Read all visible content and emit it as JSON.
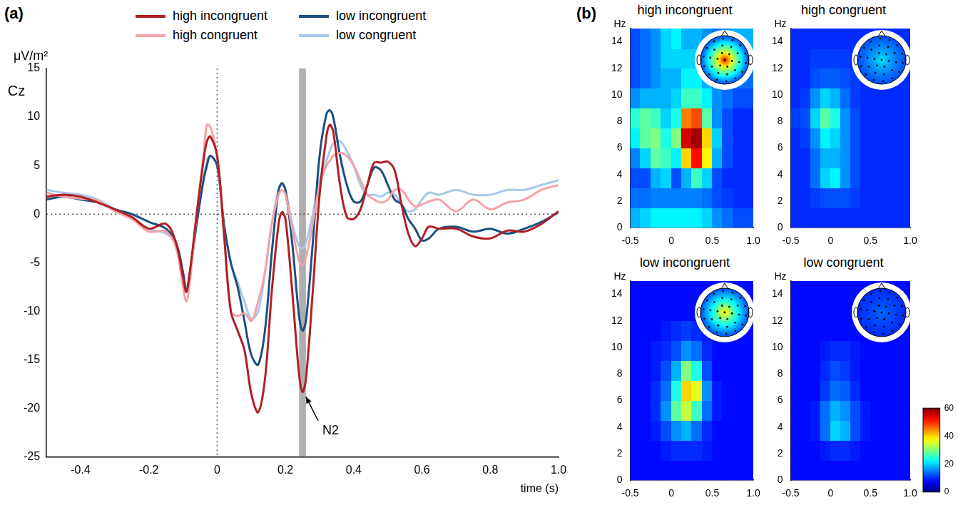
{
  "chart_data": [
    {
      "type": "line",
      "panel": "(a)",
      "y_label": "μV/m²",
      "x_label": "time (s)",
      "xlim": [
        -0.5,
        1.0
      ],
      "xticks": [
        -0.4,
        -0.2,
        0,
        0.2,
        0.4,
        0.6,
        0.8,
        {
          "value": 1.0,
          "label": "1.0"
        }
      ],
      "ylim": [
        -25,
        15
      ],
      "yticks": [
        -25,
        -20,
        -15,
        -10,
        -5,
        0,
        5,
        10,
        15
      ],
      "grid": false,
      "legend": "top",
      "x": [
        -0.5,
        -0.45,
        -0.4,
        -0.35,
        -0.3,
        -0.25,
        -0.2,
        -0.15,
        -0.12,
        -0.1,
        -0.09,
        -0.08,
        -0.06,
        -0.04,
        -0.03,
        -0.02,
        0,
        0.02,
        0.04,
        0.06,
        0.08,
        0.1,
        0.12,
        0.14,
        0.16,
        0.18,
        0.19,
        0.2,
        0.22,
        0.24,
        0.25,
        0.26,
        0.28,
        0.3,
        0.32,
        0.33,
        0.34,
        0.36,
        0.38,
        0.4,
        0.42,
        0.44,
        0.46,
        0.48,
        0.5,
        0.52,
        0.54,
        0.56,
        0.58,
        0.6,
        0.62,
        0.65,
        0.7,
        0.75,
        0.8,
        0.85,
        0.9,
        0.95,
        1.0
      ],
      "series": [
        {
          "name": "high incongruent",
          "color": "#b11f24",
          "values": [
            1.8,
            2,
            1.8,
            1.2,
            0.5,
            -0.3,
            -1.5,
            -1.0,
            -3,
            -6.5,
            -8,
            -6,
            0,
            5.5,
            7.5,
            8,
            6,
            -2,
            -10,
            -12,
            -14,
            -18.5,
            -20.4,
            -17,
            -8,
            -1,
            0.2,
            -0.5,
            -8,
            -16.5,
            -18.3,
            -17,
            -8,
            2,
            8,
            9.2,
            8.5,
            3,
            -0.3,
            -0.5,
            0.5,
            3,
            5.3,
            5.3,
            5.4,
            4.5,
            1,
            -2,
            -3.3,
            -2.5,
            -1.3,
            -1.5,
            -1.5,
            -2.3,
            -2.5,
            -1.7,
            -1.8,
            -1,
            0.3
          ]
        },
        {
          "name": "high congruent",
          "color": "#f4a3a8",
          "values": [
            2.2,
            1.8,
            1.6,
            1.4,
            0.3,
            -0.5,
            -1.8,
            -1.8,
            -3.5,
            -7.5,
            -9,
            -7,
            0,
            6,
            9.2,
            9,
            6,
            -2,
            -10,
            -10.5,
            -10.2,
            -11,
            -9,
            -6,
            -1,
            2,
            2.5,
            2,
            -1.5,
            -4.8,
            -5.3,
            -4.5,
            -1,
            3,
            5,
            5.5,
            6,
            6.3,
            6,
            5,
            3.5,
            2,
            1.5,
            1.2,
            1.5,
            2.5,
            2.5,
            1.5,
            0.8,
            1,
            1.3,
            1.5,
            0.3,
            1.5,
            0.5,
            1.2,
            1.5,
            2.5,
            3
          ]
        },
        {
          "name": "low incongruent",
          "color": "#1c4f80",
          "values": [
            1.5,
            1.8,
            1.5,
            1.2,
            0.5,
            0,
            -0.8,
            -1.5,
            -3,
            -6,
            -8,
            -6,
            -1,
            3.5,
            5,
            6,
            5,
            -1,
            -5,
            -7.5,
            -11,
            -14.5,
            -15.5,
            -12,
            -4,
            2.5,
            3.2,
            2.5,
            -3,
            -10.5,
            -12,
            -11,
            -3,
            6,
            10.3,
            10.7,
            10,
            6,
            3,
            1.3,
            1.3,
            3,
            4.8,
            4.5,
            3,
            1.5,
            1,
            -0.5,
            -1.5,
            -2.7,
            -2.5,
            -1.5,
            -1.3,
            -1.8,
            -1.5,
            -2,
            -1.5,
            -0.8,
            0.2
          ]
        },
        {
          "name": "low congruent",
          "color": "#a6c8ec",
          "values": [
            2.5,
            2.2,
            2,
            1.5,
            0.5,
            -0.3,
            -1.5,
            -2,
            -3,
            -6,
            -7.5,
            -6,
            -1,
            3.5,
            5.5,
            6,
            5,
            -1,
            -5,
            -7,
            -9,
            -10.8,
            -10,
            -6,
            -1,
            2.5,
            3,
            2.5,
            -1,
            -3.3,
            -3.5,
            -3,
            0,
            3.5,
            5.5,
            6.5,
            7.3,
            7.5,
            6.5,
            5,
            3,
            2,
            2,
            1.8,
            2.2,
            2,
            1,
            0.3,
            0.5,
            1.5,
            2.2,
            2,
            2.5,
            2,
            2,
            2.5,
            2.5,
            3,
            3.5
          ]
        }
      ],
      "annotations": [
        {
          "type": "band",
          "x": [
            0.24,
            0.26
          ]
        },
        {
          "type": "vline",
          "x": 0
        },
        {
          "type": "hline",
          "y": 0
        },
        {
          "type": "label",
          "text": "Cz"
        },
        {
          "type": "arrow",
          "text": "N2",
          "x": 0.3,
          "y": -22,
          "to": [
            0.26,
            -18.8
          ]
        }
      ]
    },
    {
      "type": "heatmap",
      "panel": "(b)",
      "title": "high incongruent",
      "y_label": "Hz",
      "xlim": [
        -0.5,
        1.0
      ],
      "xticks": [
        -0.5,
        0,
        0.5,
        {
          "value": 1.0,
          "label": "1.0"
        }
      ],
      "ylim": [
        0,
        15
      ],
      "yticks": [
        0,
        2,
        4,
        6,
        8,
        10,
        12,
        14
      ],
      "x_edges": [
        -0.5,
        -0.375,
        -0.25,
        -0.125,
        0,
        0.125,
        0.25,
        0.375,
        0.5,
        0.625,
        0.75,
        0.875,
        1.0
      ],
      "y_edges": [
        0,
        1.5,
        3,
        4.5,
        6,
        7.5,
        9,
        10.5,
        12,
        13.5,
        15
      ],
      "cells": [
        [
          18,
          20,
          22,
          22,
          22,
          22,
          22,
          20,
          16,
          14,
          12,
          12
        ],
        [
          14,
          14,
          15,
          15,
          15,
          15,
          15,
          14,
          12,
          11,
          10,
          10
        ],
        [
          12,
          12,
          18,
          20,
          12,
          18,
          26,
          20,
          12,
          10,
          10,
          10
        ],
        [
          15,
          20,
          28,
          26,
          22,
          40,
          52,
          38,
          18,
          12,
          10,
          10
        ],
        [
          22,
          28,
          30,
          24,
          30,
          55,
          58,
          40,
          20,
          12,
          10,
          10
        ],
        [
          25,
          28,
          26,
          20,
          24,
          45,
          48,
          28,
          16,
          12,
          10,
          10
        ],
        [
          16,
          18,
          18,
          18,
          20,
          26,
          26,
          22,
          16,
          14,
          12,
          12
        ],
        [
          12,
          14,
          16,
          18,
          18,
          22,
          22,
          18,
          16,
          14,
          14,
          14
        ],
        [
          12,
          14,
          16,
          20,
          20,
          20,
          20,
          16,
          14,
          16,
          18,
          18
        ],
        [
          12,
          14,
          16,
          20,
          22,
          18,
          18,
          16,
          14,
          16,
          18,
          18
        ]
      ],
      "topography": {
        "center": 55,
        "edge": 12
      }
    },
    {
      "type": "heatmap",
      "title": "high congruent",
      "y_label": "Hz",
      "xlim": [
        -0.5,
        1.0
      ],
      "xticks": [
        -0.5,
        0,
        0.5,
        {
          "value": 1.0,
          "label": "1.0"
        }
      ],
      "ylim": [
        0,
        15
      ],
      "yticks": [
        0,
        2,
        4,
        6,
        8,
        10,
        12,
        14
      ],
      "x_edges": [
        -0.5,
        -0.375,
        -0.25,
        -0.125,
        0,
        0.125,
        0.25,
        0.375,
        0.5,
        0.625,
        0.75,
        0.875,
        1.0
      ],
      "y_edges": [
        0,
        1.5,
        3,
        4.5,
        6,
        7.5,
        9,
        10.5,
        12,
        13.5,
        15
      ],
      "cells": [
        [
          10,
          10,
          10,
          10,
          10,
          10,
          10,
          10,
          10,
          10,
          10,
          10
        ],
        [
          10,
          10,
          11,
          12,
          12,
          12,
          11,
          10,
          10,
          10,
          10,
          10
        ],
        [
          10,
          10,
          14,
          20,
          22,
          16,
          12,
          10,
          10,
          10,
          10,
          10
        ],
        [
          10,
          10,
          14,
          18,
          18,
          16,
          12,
          10,
          10,
          10,
          10,
          10
        ],
        [
          10,
          11,
          16,
          22,
          20,
          16,
          12,
          10,
          10,
          10,
          10,
          10
        ],
        [
          11,
          12,
          20,
          28,
          24,
          16,
          12,
          10,
          10,
          10,
          10,
          10
        ],
        [
          10,
          11,
          16,
          20,
          18,
          14,
          11,
          10,
          10,
          10,
          10,
          10
        ],
        [
          10,
          10,
          12,
          13,
          13,
          12,
          11,
          10,
          10,
          10,
          10,
          10
        ],
        [
          10,
          10,
          11,
          11,
          11,
          11,
          10,
          10,
          10,
          10,
          10,
          10
        ],
        [
          10,
          10,
          10,
          10,
          10,
          10,
          10,
          10,
          10,
          10,
          10,
          10
        ]
      ],
      "topography": {
        "center": 22,
        "edge": 12
      }
    },
    {
      "type": "heatmap",
      "title": "low incongruent",
      "y_label": "Hz",
      "xlim": [
        -0.5,
        1.0
      ],
      "xticks": [
        -0.5,
        0,
        0.5,
        {
          "value": 1.0,
          "label": "1.0"
        }
      ],
      "ylim": [
        0,
        15
      ],
      "yticks": [
        0,
        2,
        4,
        6,
        8,
        10,
        12,
        14
      ],
      "x_edges": [
        -0.5,
        -0.375,
        -0.25,
        -0.125,
        0,
        0.125,
        0.25,
        0.375,
        0.5,
        0.625,
        0.75,
        0.875,
        1.0
      ],
      "y_edges": [
        0,
        1.5,
        3,
        4.5,
        6,
        7.5,
        9,
        10.5,
        12,
        13.5,
        15
      ],
      "cells": [
        [
          8,
          8,
          8,
          8,
          8,
          8,
          8,
          8,
          8,
          8,
          8,
          8
        ],
        [
          8,
          8,
          8,
          9,
          10,
          10,
          10,
          9,
          8,
          8,
          8,
          8
        ],
        [
          8,
          8,
          9,
          12,
          16,
          18,
          14,
          10,
          8,
          8,
          8,
          8
        ],
        [
          8,
          8,
          10,
          16,
          28,
          34,
          26,
          14,
          9,
          8,
          8,
          8
        ],
        [
          8,
          8,
          10,
          14,
          24,
          40,
          36,
          16,
          9,
          8,
          8,
          8
        ],
        [
          8,
          8,
          9,
          12,
          18,
          30,
          24,
          12,
          8,
          8,
          8,
          8
        ],
        [
          8,
          8,
          9,
          10,
          12,
          16,
          14,
          10,
          8,
          8,
          8,
          8
        ],
        [
          8,
          8,
          8,
          9,
          10,
          11,
          10,
          9,
          8,
          8,
          8,
          8
        ],
        [
          8,
          8,
          8,
          8,
          8,
          8,
          8,
          8,
          8,
          8,
          8,
          8
        ],
        [
          8,
          8,
          8,
          8,
          8,
          8,
          8,
          8,
          8,
          8,
          8,
          8
        ]
      ],
      "topography": {
        "center": 42,
        "edge": 12
      }
    },
    {
      "type": "heatmap",
      "title": "low congruent",
      "y_label": "Hz",
      "xlim": [
        -0.5,
        1.0
      ],
      "xticks": [
        -0.5,
        0,
        0.5,
        {
          "value": 1.0,
          "label": "1.0"
        }
      ],
      "ylim": [
        0,
        15
      ],
      "yticks": [
        0,
        2,
        4,
        6,
        8,
        10,
        12,
        14
      ],
      "x_edges": [
        -0.5,
        -0.375,
        -0.25,
        -0.125,
        0,
        0.125,
        0.25,
        0.375,
        0.5,
        0.625,
        0.75,
        0.875,
        1.0
      ],
      "y_edges": [
        0,
        1.5,
        3,
        4.5,
        6,
        7.5,
        9,
        10.5,
        12,
        13.5,
        15
      ],
      "cells": [
        [
          8,
          8,
          8,
          8,
          8,
          8,
          8,
          8,
          8,
          8,
          8,
          8
        ],
        [
          8,
          8,
          8,
          9,
          10,
          10,
          9,
          8,
          8,
          8,
          8,
          8
        ],
        [
          8,
          8,
          9,
          14,
          20,
          18,
          12,
          9,
          8,
          8,
          8,
          8
        ],
        [
          8,
          8,
          9,
          14,
          18,
          16,
          12,
          9,
          8,
          8,
          8,
          8
        ],
        [
          8,
          8,
          8,
          11,
          14,
          13,
          10,
          8,
          8,
          8,
          8,
          8
        ],
        [
          8,
          8,
          8,
          10,
          12,
          11,
          9,
          8,
          8,
          8,
          8,
          8
        ],
        [
          8,
          8,
          8,
          9,
          10,
          10,
          9,
          8,
          8,
          8,
          8,
          8
        ],
        [
          8,
          8,
          8,
          8,
          8,
          8,
          8,
          8,
          8,
          8,
          8,
          8
        ],
        [
          8,
          8,
          8,
          8,
          8,
          8,
          8,
          8,
          8,
          8,
          8,
          8
        ],
        [
          8,
          8,
          8,
          8,
          8,
          8,
          8,
          8,
          8,
          8,
          8,
          8
        ]
      ],
      "topography": {
        "center": 14,
        "edge": 10
      },
      "colorbar": {
        "range": [
          0,
          60
        ],
        "ticks": [
          0,
          20,
          40,
          60
        ]
      }
    }
  ]
}
